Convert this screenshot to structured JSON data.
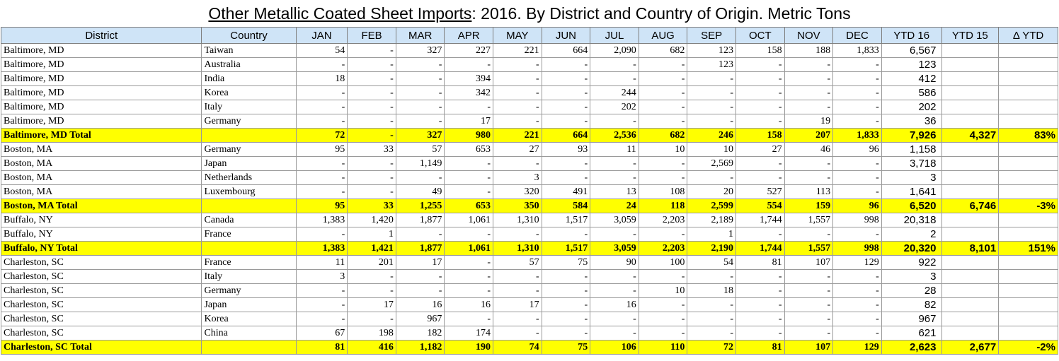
{
  "title": {
    "main": "Other Metallic Coated Sheet Imports",
    "sub": ": 2016. By District and Country of Origin. Metric Tons"
  },
  "headers": [
    "District",
    "Country",
    "JAN",
    "FEB",
    "MAR",
    "APR",
    "MAY",
    "JUN",
    "JUL",
    "AUG",
    "SEP",
    "OCT",
    "NOV",
    "DEC",
    "YTD 16",
    "YTD 15",
    "Δ YTD"
  ],
  "rows": [
    {
      "total": false,
      "cells": [
        "Baltimore, MD",
        "Taiwan",
        "54",
        "-",
        "327",
        "227",
        "221",
        "664",
        "2,090",
        "682",
        "123",
        "158",
        "188",
        "1,833",
        "6,567",
        "",
        ""
      ]
    },
    {
      "total": false,
      "cells": [
        "Baltimore, MD",
        "Australia",
        "-",
        "-",
        "-",
        "-",
        "-",
        "-",
        "-",
        "-",
        "123",
        "-",
        "-",
        "-",
        "123",
        "",
        ""
      ]
    },
    {
      "total": false,
      "cells": [
        "Baltimore, MD",
        "India",
        "18",
        "-",
        "-",
        "394",
        "-",
        "-",
        "-",
        "-",
        "-",
        "-",
        "-",
        "-",
        "412",
        "",
        ""
      ]
    },
    {
      "total": false,
      "cells": [
        "Baltimore, MD",
        "Korea",
        "-",
        "-",
        "-",
        "342",
        "-",
        "-",
        "244",
        "-",
        "-",
        "-",
        "-",
        "-",
        "586",
        "",
        ""
      ]
    },
    {
      "total": false,
      "cells": [
        "Baltimore, MD",
        "Italy",
        "-",
        "-",
        "-",
        "-",
        "-",
        "-",
        "202",
        "-",
        "-",
        "-",
        "-",
        "-",
        "202",
        "",
        ""
      ]
    },
    {
      "total": false,
      "cells": [
        "Baltimore, MD",
        "Germany",
        "-",
        "-",
        "-",
        "17",
        "-",
        "-",
        "-",
        "-",
        "-",
        "-",
        "19",
        "-",
        "36",
        "",
        ""
      ]
    },
    {
      "total": true,
      "cells": [
        "Baltimore, MD Total",
        "",
        "72",
        "-",
        "327",
        "980",
        "221",
        "664",
        "2,536",
        "682",
        "246",
        "158",
        "207",
        "1,833",
        "7,926",
        "4,327",
        "83%"
      ]
    },
    {
      "total": false,
      "cells": [
        "Boston, MA",
        "Germany",
        "95",
        "33",
        "57",
        "653",
        "27",
        "93",
        "11",
        "10",
        "10",
        "27",
        "46",
        "96",
        "1,158",
        "",
        ""
      ]
    },
    {
      "total": false,
      "cells": [
        "Boston, MA",
        "Japan",
        "-",
        "-",
        "1,149",
        "-",
        "-",
        "-",
        "-",
        "-",
        "2,569",
        "-",
        "-",
        "-",
        "3,718",
        "",
        ""
      ]
    },
    {
      "total": false,
      "cells": [
        "Boston, MA",
        "Netherlands",
        "-",
        "-",
        "-",
        "-",
        "3",
        "-",
        "-",
        "-",
        "-",
        "-",
        "-",
        "-",
        "3",
        "",
        ""
      ]
    },
    {
      "total": false,
      "cells": [
        "Boston, MA",
        "Luxembourg",
        "-",
        "-",
        "49",
        "-",
        "320",
        "491",
        "13",
        "108",
        "20",
        "527",
        "113",
        "-",
        "1,641",
        "",
        ""
      ]
    },
    {
      "total": true,
      "cells": [
        "Boston, MA Total",
        "",
        "95",
        "33",
        "1,255",
        "653",
        "350",
        "584",
        "24",
        "118",
        "2,599",
        "554",
        "159",
        "96",
        "6,520",
        "6,746",
        "-3%"
      ]
    },
    {
      "total": false,
      "cells": [
        "Buffalo, NY",
        "Canada",
        "1,383",
        "1,420",
        "1,877",
        "1,061",
        "1,310",
        "1,517",
        "3,059",
        "2,203",
        "2,189",
        "1,744",
        "1,557",
        "998",
        "20,318",
        "",
        ""
      ]
    },
    {
      "total": false,
      "cells": [
        "Buffalo, NY",
        "France",
        "-",
        "1",
        "-",
        "-",
        "-",
        "-",
        "-",
        "-",
        "1",
        "-",
        "-",
        "-",
        "2",
        "",
        ""
      ]
    },
    {
      "total": true,
      "cells": [
        "Buffalo, NY Total",
        "",
        "1,383",
        "1,421",
        "1,877",
        "1,061",
        "1,310",
        "1,517",
        "3,059",
        "2,203",
        "2,190",
        "1,744",
        "1,557",
        "998",
        "20,320",
        "8,101",
        "151%"
      ]
    },
    {
      "total": false,
      "cells": [
        "Charleston, SC",
        "France",
        "11",
        "201",
        "17",
        "-",
        "57",
        "75",
        "90",
        "100",
        "54",
        "81",
        "107",
        "129",
        "922",
        "",
        ""
      ]
    },
    {
      "total": false,
      "cells": [
        "Charleston, SC",
        "Italy",
        "3",
        "-",
        "-",
        "-",
        "-",
        "-",
        "-",
        "-",
        "-",
        "-",
        "-",
        "-",
        "3",
        "",
        ""
      ]
    },
    {
      "total": false,
      "cells": [
        "Charleston, SC",
        "Germany",
        "-",
        "-",
        "-",
        "-",
        "-",
        "-",
        "-",
        "10",
        "18",
        "-",
        "-",
        "-",
        "28",
        "",
        ""
      ]
    },
    {
      "total": false,
      "cells": [
        "Charleston, SC",
        "Japan",
        "-",
        "17",
        "16",
        "16",
        "17",
        "-",
        "16",
        "-",
        "-",
        "-",
        "-",
        "-",
        "82",
        "",
        ""
      ]
    },
    {
      "total": false,
      "cells": [
        "Charleston, SC",
        "Korea",
        "-",
        "-",
        "967",
        "-",
        "-",
        "-",
        "-",
        "-",
        "-",
        "-",
        "-",
        "-",
        "967",
        "",
        ""
      ]
    },
    {
      "total": false,
      "cells": [
        "Charleston, SC",
        "China",
        "67",
        "198",
        "182",
        "174",
        "-",
        "-",
        "-",
        "-",
        "-",
        "-",
        "-",
        "-",
        "621",
        "",
        ""
      ]
    },
    {
      "total": true,
      "cells": [
        "Charleston, SC Total",
        "",
        "81",
        "416",
        "1,182",
        "190",
        "74",
        "75",
        "106",
        "110",
        "72",
        "81",
        "107",
        "129",
        "2,623",
        "2,677",
        "-2%"
      ]
    }
  ]
}
